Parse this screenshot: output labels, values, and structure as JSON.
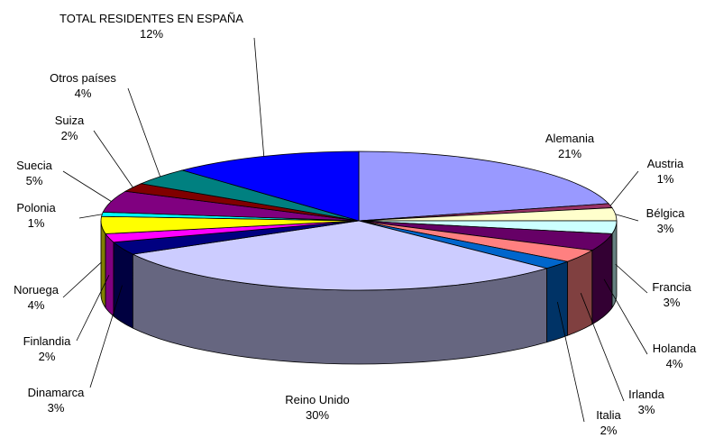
{
  "chart_data": {
    "type": "pie3d",
    "categories": [
      "Alemania",
      "Austria",
      "Bélgica",
      "Francia",
      "Holanda",
      "Irlanda",
      "Italia",
      "Reino Unido",
      "Dinamarca",
      "Finlandia",
      "Noruega",
      "Polonia",
      "Suecia",
      "Suiza",
      "Otros países",
      "TOTAL RESIDENTES EN ESPAÑA"
    ],
    "values": [
      21,
      1,
      3,
      3,
      4,
      3,
      2,
      30,
      3,
      2,
      4,
      1,
      5,
      2,
      4,
      12
    ],
    "value_labels": [
      "21%",
      "1%",
      "3%",
      "3%",
      "4%",
      "3%",
      "2%",
      "30%",
      "3%",
      "2%",
      "4%",
      "1%",
      "5%",
      "2%",
      "4%",
      "12%"
    ],
    "colors": [
      "#9999ff",
      "#993366",
      "#ffffcc",
      "#ccffff",
      "#660066",
      "#ff8080",
      "#0066cc",
      "#ccccff",
      "#000080",
      "#ff00ff",
      "#ffff00",
      "#00ffff",
      "#800080",
      "#800000",
      "#008080",
      "#0000ff"
    ]
  }
}
